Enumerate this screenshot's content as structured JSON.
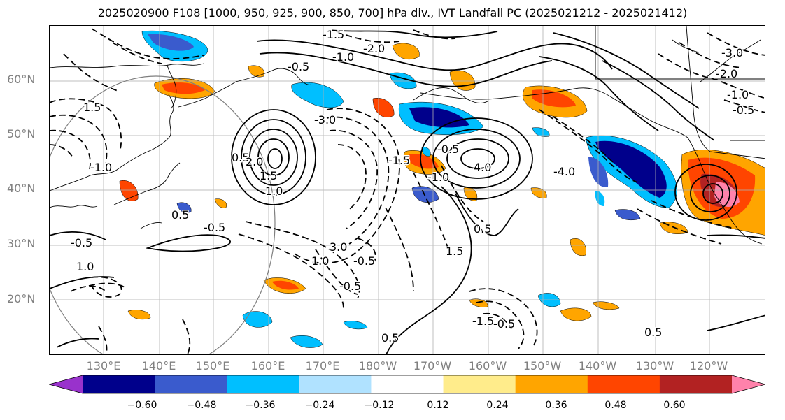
{
  "title": "2025020900 F108 [1000, 950, 925, 900, 850, 700] hPa div., IVT Landfall PC (2025021212 - 2025021412)",
  "map": {
    "latitude_labels": [
      "60°N",
      "50°N",
      "40°N",
      "30°N",
      "20°N"
    ],
    "longitude_labels": [
      "130°E",
      "140°E",
      "150°E",
      "160°E",
      "170°E",
      "180°W",
      "170°W",
      "160°W",
      "150°W",
      "140°W",
      "130°W",
      "120°W"
    ],
    "gridlines": true,
    "contour_line_color": "#000000",
    "negative_contour_style": "dashed",
    "positive_contour_style": "solid",
    "contour_labels": [
      "-3.0",
      "-2.0",
      "-1.5",
      "-1.0",
      "-0.5",
      "0.5",
      "1.0",
      "1.5",
      "2.0",
      "3.0",
      "4.0",
      "-4.0",
      "-1.5",
      "-0.5",
      "-1.0",
      "1.5",
      "0.5",
      "-0.5",
      "1.0",
      "-0.5",
      "-2.0",
      "-3.0",
      "-1.0",
      "-0.5",
      "0.5",
      "-0.5",
      "-1.5",
      "0.5",
      "1.0",
      "1.5",
      "-0.5",
      "-1.0",
      "0.5",
      "-0.5"
    ]
  },
  "colorbar": {
    "colors": [
      "#9932CC",
      "#00008B",
      "#3A5BCD",
      "#00BFFF",
      "#B0E2FF",
      "#FFFFFF",
      "#FFEC8B",
      "#FFA500",
      "#FF4500",
      "#B22222",
      "#FF82AB"
    ],
    "tick_labels": [
      "−0.60",
      "−0.48",
      "−0.36",
      "−0.24",
      "−0.12",
      "0.12",
      "0.24",
      "0.36",
      "0.48",
      "0.60"
    ],
    "extend": "both"
  }
}
